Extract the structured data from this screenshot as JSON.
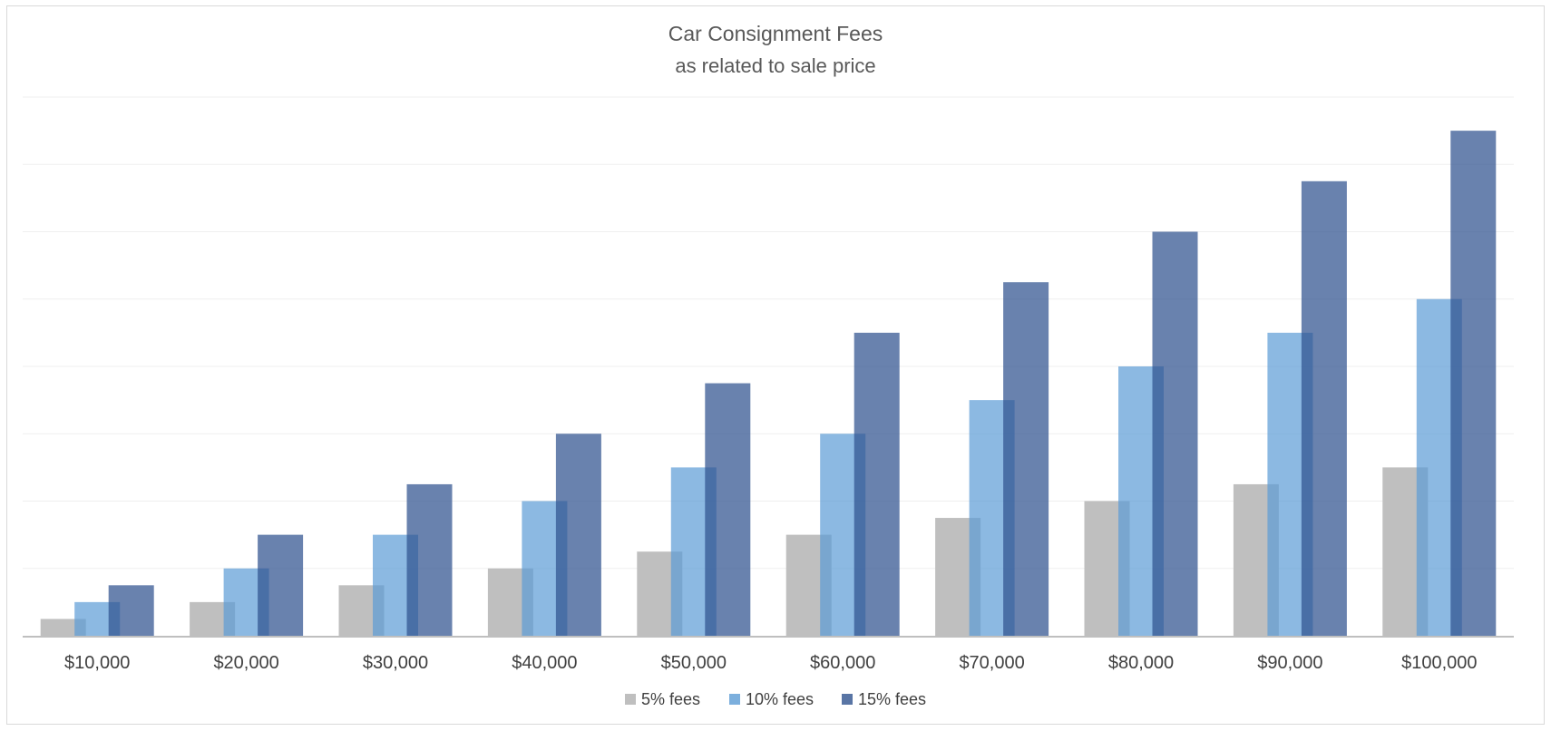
{
  "chart_data": {
    "type": "bar",
    "title": "Car Consignment Fees",
    "subtitle": "as related to sale price",
    "xlabel": "",
    "ylabel": "",
    "categories": [
      "$10,000",
      "$20,000",
      "$30,000",
      "$40,000",
      "$50,000",
      "$60,000",
      "$70,000",
      "$80,000",
      "$90,000",
      "$100,000"
    ],
    "series": [
      {
        "name": "5% fees",
        "color": "#bfbfbf",
        "values": [
          500,
          1000,
          1500,
          2000,
          2500,
          3000,
          3500,
          4000,
          4500,
          5000
        ]
      },
      {
        "name": "10% fees",
        "color": "#5b9bd5",
        "values": [
          1000,
          2000,
          3000,
          4000,
          5000,
          6000,
          7000,
          8000,
          9000,
          10000
        ]
      },
      {
        "name": "15% fees",
        "color": "#2f528f",
        "values": [
          1500,
          3000,
          4500,
          6000,
          7500,
          9000,
          10500,
          12000,
          13500,
          15000
        ]
      }
    ],
    "ylim": [
      0,
      16000
    ],
    "ytick_step": 2000,
    "y_tick_labels_shown": false,
    "grid": true,
    "legend": "bottom",
    "bars_overlap": true
  }
}
